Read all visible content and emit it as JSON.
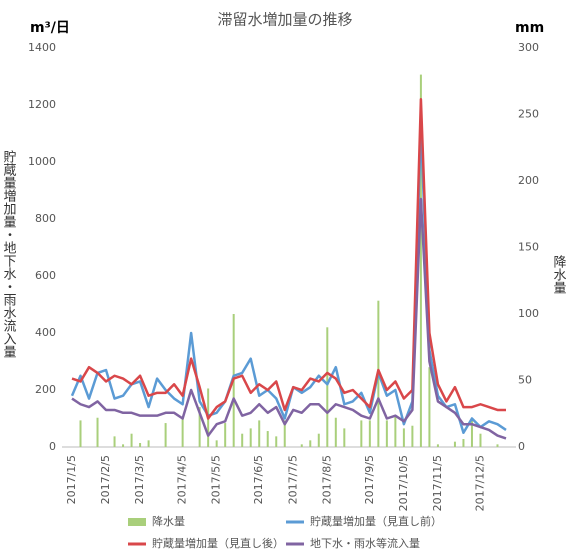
{
  "chart_data": {
    "type": "line",
    "title": "滞留水増加量の推移",
    "y_unit": "m³/日",
    "y2_unit": "mm",
    "ylabel": "貯蔵量増加量・地下水・雨水流入量",
    "y2label": "降水量",
    "categories": [
      "2017/1/5",
      null,
      null,
      null,
      "2017/2/5",
      null,
      null,
      null,
      "2017/3/5",
      null,
      null,
      null,
      null,
      "2017/4/5",
      null,
      null,
      null,
      "2017/5/5",
      null,
      null,
      null,
      null,
      "2017/6/5",
      null,
      null,
      null,
      "2017/7/5",
      null,
      null,
      null,
      "2017/8/5",
      null,
      null,
      null,
      null,
      "2017/9/5",
      null,
      null,
      null,
      "2017/10/5",
      null,
      null,
      null,
      "2017/11/5",
      null,
      null,
      null,
      null,
      "2017/12/5",
      null,
      null,
      null
    ],
    "ylim": [
      0,
      1400
    ],
    "yticks": [
      0,
      200,
      400,
      600,
      800,
      1000,
      1200,
      1400
    ],
    "y2lim": [
      0,
      300
    ],
    "y2ticks": [
      0,
      50,
      100,
      150,
      200,
      250,
      300
    ],
    "grid": false,
    "series": [
      {
        "name": "降水量",
        "type": "bar",
        "axis": "y2",
        "color": "#a9cf7b",
        "values": [
          0,
          20,
          0,
          22,
          0,
          8,
          2,
          10,
          3,
          5,
          0,
          18,
          0,
          22,
          0,
          30,
          44,
          5,
          18,
          100,
          10,
          14,
          20,
          12,
          8,
          20,
          0,
          2,
          5,
          10,
          90,
          22,
          14,
          0,
          20,
          20,
          110,
          20,
          24,
          14,
          16,
          280,
          60,
          2,
          0,
          4,
          6,
          20,
          10,
          0,
          2,
          0
        ]
      },
      {
        "name": "貯蔵量増加量（見直し前）",
        "type": "line",
        "color": "#5b9bd5",
        "values": [
          180,
          250,
          170,
          260,
          270,
          170,
          180,
          220,
          230,
          140,
          240,
          200,
          170,
          150,
          400,
          160,
          110,
          120,
          160,
          250,
          260,
          310,
          180,
          200,
          170,
          100,
          210,
          190,
          210,
          250,
          220,
          280,
          150,
          160,
          190,
          120,
          260,
          180,
          200,
          80,
          160,
          1130,
          340,
          180,
          140,
          150,
          50,
          100,
          70,
          90,
          80,
          60
        ]
      },
      {
        "name": "貯蔵量増加量（見直し後）",
        "type": "line",
        "color": "#d9474a",
        "values": [
          240,
          230,
          280,
          260,
          230,
          250,
          240,
          220,
          250,
          180,
          190,
          190,
          220,
          180,
          310,
          210,
          100,
          140,
          160,
          240,
          250,
          190,
          220,
          200,
          230,
          130,
          210,
          200,
          240,
          230,
          260,
          240,
          190,
          200,
          170,
          140,
          270,
          200,
          230,
          170,
          200,
          1220,
          400,
          220,
          160,
          210,
          140,
          140,
          150,
          140,
          130,
          130
        ]
      },
      {
        "name": "地下水・雨水等流入量",
        "type": "line",
        "color": "#8064a2",
        "values": [
          170,
          150,
          140,
          160,
          130,
          130,
          120,
          120,
          110,
          110,
          110,
          120,
          120,
          100,
          200,
          120,
          40,
          80,
          90,
          170,
          110,
          120,
          150,
          120,
          140,
          80,
          130,
          120,
          150,
          150,
          120,
          150,
          140,
          130,
          110,
          100,
          170,
          100,
          110,
          90,
          130,
          870,
          300,
          160,
          140,
          120,
          80,
          80,
          70,
          60,
          40,
          30
        ]
      }
    ]
  }
}
